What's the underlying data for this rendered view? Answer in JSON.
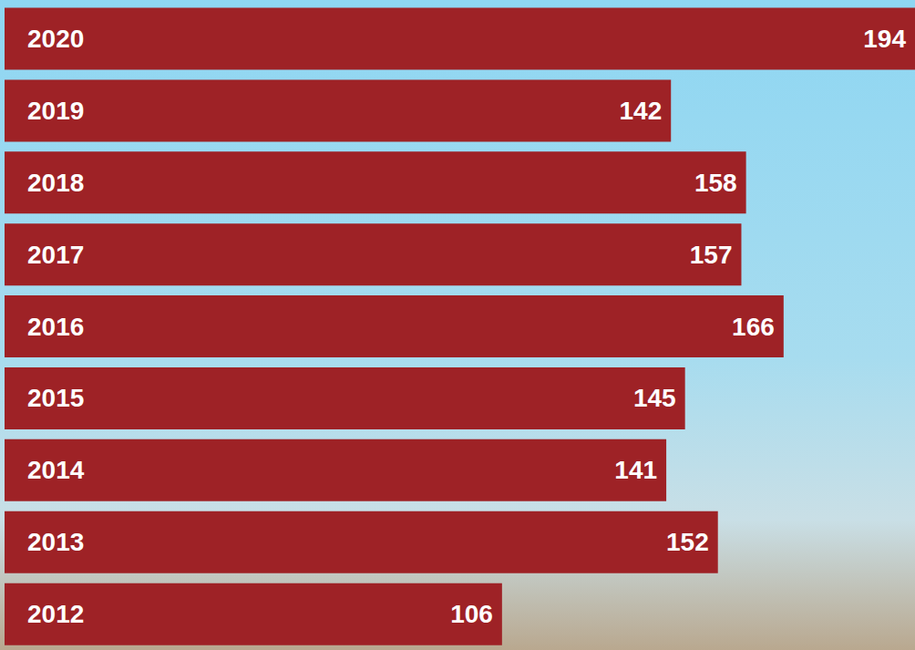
{
  "chart_data": {
    "type": "bar",
    "orientation": "horizontal",
    "categories": [
      "2020",
      "2019",
      "2018",
      "2017",
      "2016",
      "2015",
      "2014",
      "2013",
      "2012"
    ],
    "values": [
      194,
      142,
      158,
      157,
      166,
      145,
      141,
      152,
      106
    ],
    "color": "#9e2226",
    "xlim": [
      0,
      194
    ],
    "data_labels": true,
    "tick_labels": "y",
    "grid": false
  }
}
